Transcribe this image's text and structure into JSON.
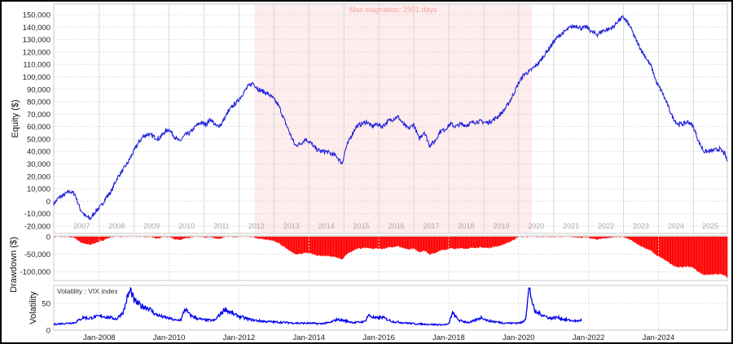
{
  "chart_data": [
    {
      "type": "line",
      "name": "equity",
      "ylabel": "Equity ($)",
      "ylim": [
        -20000,
        150000
      ],
      "yticks": [
        150000,
        140000,
        130000,
        120000,
        110000,
        100000,
        90000,
        80000,
        70000,
        60000,
        50000,
        40000,
        30000,
        20000,
        10000,
        0,
        -10000,
        -20000
      ],
      "ytick_labels": [
        "150,000",
        "140,000",
        "130,000",
        "120,000",
        "110,000",
        "100,000",
        "90,000",
        "80,000",
        "70,000",
        "60,000",
        "50,000",
        "40,000",
        "30,000",
        "20,000",
        "10,000",
        "0",
        "-10,000",
        "-20,000"
      ],
      "xlim": [
        2006.7,
        2025.97
      ],
      "year_labels": [
        "2007",
        "2008",
        "2009",
        "2010",
        "2011",
        "2012",
        "2013",
        "2014",
        "2015",
        "2016",
        "2017",
        "2018",
        "2019",
        "2020",
        "2021",
        "2022",
        "2023",
        "2024",
        "2025"
      ],
      "annotation": {
        "text": "Max stagnation: 2901 days",
        "start": 2012.44,
        "end": 2020.38,
        "color": "#ffecec"
      },
      "color": "#2222dd",
      "x": [
        2006.7,
        2006.85,
        2007.0,
        2007.15,
        2007.3,
        2007.45,
        2007.6,
        2007.75,
        2007.9,
        2008.05,
        2008.2,
        2008.35,
        2008.5,
        2008.65,
        2008.8,
        2008.95,
        2009.1,
        2009.25,
        2009.4,
        2009.55,
        2009.7,
        2009.85,
        2010.0,
        2010.15,
        2010.3,
        2010.45,
        2010.6,
        2010.75,
        2010.9,
        2011.05,
        2011.2,
        2011.35,
        2011.5,
        2011.65,
        2011.8,
        2011.95,
        2012.1,
        2012.25,
        2012.4,
        2012.55,
        2012.7,
        2012.85,
        2013.0,
        2013.15,
        2013.3,
        2013.45,
        2013.6,
        2013.75,
        2013.9,
        2014.05,
        2014.2,
        2014.35,
        2014.5,
        2014.65,
        2014.8,
        2014.95,
        2015.05,
        2015.2,
        2015.35,
        2015.5,
        2015.65,
        2015.8,
        2015.95,
        2016.1,
        2016.25,
        2016.4,
        2016.55,
        2016.7,
        2016.85,
        2017.0,
        2017.15,
        2017.3,
        2017.45,
        2017.6,
        2017.75,
        2017.9,
        2018.05,
        2018.2,
        2018.35,
        2018.5,
        2018.65,
        2018.8,
        2018.95,
        2019.1,
        2019.25,
        2019.4,
        2019.55,
        2019.7,
        2019.85,
        2020.0,
        2020.15,
        2020.3,
        2020.45,
        2020.6,
        2020.75,
        2020.9,
        2021.05,
        2021.2,
        2021.35,
        2021.5,
        2021.65,
        2021.8,
        2021.95,
        2022.1,
        2022.25,
        2022.4,
        2022.55,
        2022.7,
        2022.85,
        2023.0,
        2023.1,
        2023.2,
        2023.35,
        2023.5,
        2023.65,
        2023.8,
        2023.95,
        2024.1,
        2024.25,
        2024.4,
        2024.55,
        2024.7,
        2024.85,
        2025.0,
        2025.15,
        2025.3,
        2025.45,
        2025.6,
        2025.75,
        2025.9,
        2025.97
      ],
      "values": [
        -2000,
        3000,
        5000,
        8000,
        6000,
        -6000,
        -12000,
        -14000,
        -8000,
        -4000,
        3000,
        8000,
        18000,
        24000,
        30000,
        38000,
        46000,
        52000,
        54000,
        52000,
        50000,
        55000,
        58000,
        52000,
        48000,
        53000,
        55000,
        60000,
        63000,
        62000,
        66000,
        60000,
        62000,
        70000,
        76000,
        80000,
        86000,
        92000,
        95000,
        90000,
        88000,
        86000,
        82000,
        76000,
        65000,
        55000,
        45000,
        46000,
        50000,
        47000,
        42000,
        40000,
        40000,
        38000,
        36000,
        30000,
        42000,
        52000,
        60000,
        62000,
        64000,
        60000,
        62000,
        60000,
        64000,
        66000,
        68000,
        62000,
        58000,
        62000,
        50000,
        56000,
        45000,
        48000,
        56000,
        58000,
        62000,
        60000,
        62000,
        61000,
        63000,
        64000,
        64000,
        63000,
        65000,
        68000,
        72000,
        78000,
        86000,
        95000,
        102000,
        104000,
        108000,
        112000,
        118000,
        124000,
        130000,
        134000,
        137000,
        140000,
        141000,
        139000,
        140000,
        136000,
        134000,
        137000,
        138000,
        140000,
        145000,
        148000,
        144000,
        140000,
        130000,
        122000,
        115000,
        108000,
        95000,
        88000,
        78000,
        68000,
        62000,
        62000,
        64000,
        60000,
        48000,
        40000,
        40000,
        41000,
        42000,
        38000,
        32000
      ]
    },
    {
      "type": "bar",
      "name": "drawdown",
      "ylabel": "Drawdown ($)",
      "ylim": [
        -120000,
        0
      ],
      "yticks": [
        0,
        -50000,
        -100000
      ],
      "ytick_labels": [
        "0",
        "-50,000",
        "-100,000"
      ],
      "derived_from": "equity",
      "color": "#ff0000"
    },
    {
      "type": "line",
      "name": "volatility",
      "ylabel": "Volatility",
      "legend": "Volatility : VIX index",
      "ylim": [
        0,
        80
      ],
      "yticks": [
        0,
        50
      ],
      "ytick_labels": [
        "0",
        "50"
      ],
      "xticks": [
        2008,
        2010,
        2012,
        2014,
        2016,
        2018,
        2020,
        2022,
        2024
      ],
      "xtick_labels": [
        "Jan-2008",
        "Jan-2010",
        "Jan-2012",
        "Jan-2014",
        "Jan-2016",
        "Jan-2018",
        "Jan-2020",
        "Jan-2022",
        "Jan-2024"
      ],
      "color": "#0000ee",
      "x": [
        2006.7,
        2006.9,
        2007.1,
        2007.3,
        2007.55,
        2007.7,
        2007.9,
        2008.1,
        2008.25,
        2008.5,
        2008.7,
        2008.8,
        2008.9,
        2009.0,
        2009.2,
        2009.4,
        2009.6,
        2009.8,
        2010.0,
        2010.2,
        2010.35,
        2010.45,
        2010.6,
        2010.8,
        2011.0,
        2011.3,
        2011.6,
        2011.7,
        2011.9,
        2012.1,
        2012.3,
        2012.5,
        2012.8,
        2013.1,
        2013.4,
        2013.7,
        2014.0,
        2014.3,
        2014.6,
        2014.8,
        2015.0,
        2015.3,
        2015.6,
        2015.7,
        2015.9,
        2016.1,
        2016.4,
        2016.7,
        2017.0,
        2017.4,
        2017.8,
        2018.0,
        2018.1,
        2018.3,
        2018.6,
        2018.95,
        2019.1,
        2019.5,
        2019.8,
        2020.1,
        2020.2,
        2020.3,
        2020.45,
        2020.7,
        2020.9,
        2021.1,
        2021.3,
        2021.5,
        2021.7,
        2021.8
      ],
      "values": [
        11,
        12,
        13,
        14,
        24,
        22,
        25,
        26,
        24,
        21,
        35,
        60,
        75,
        55,
        45,
        42,
        30,
        25,
        22,
        18,
        20,
        40,
        28,
        22,
        19,
        18,
        40,
        35,
        28,
        24,
        20,
        18,
        16,
        15,
        14,
        13,
        13,
        12,
        14,
        20,
        18,
        14,
        16,
        28,
        22,
        24,
        16,
        14,
        12,
        11,
        10,
        11,
        32,
        18,
        14,
        24,
        18,
        14,
        13,
        14,
        22,
        80,
        35,
        28,
        22,
        24,
        20,
        18,
        17,
        19
      ]
    }
  ]
}
